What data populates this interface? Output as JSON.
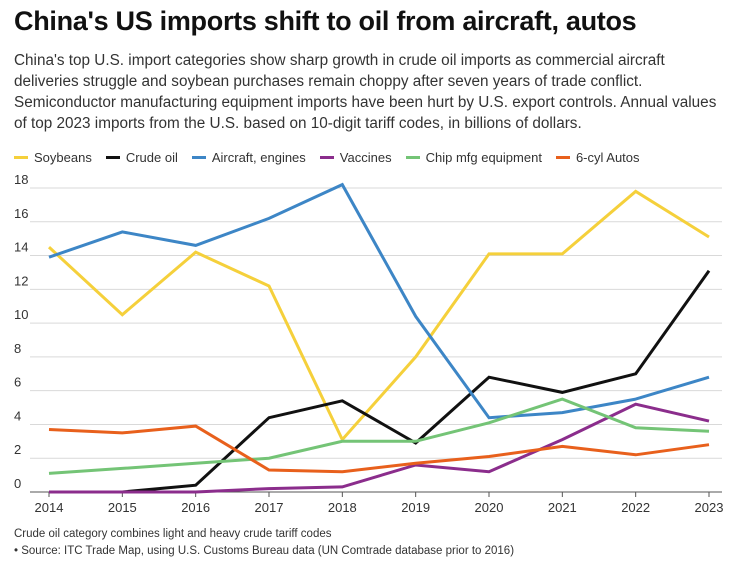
{
  "header": {
    "title": "China's US imports shift to oil from aircraft, autos",
    "subtitle": "China's top U.S. import categories show sharp growth in crude oil imports as commercial aircraft deliveries struggle and soybean purchases remain choppy after seven years of trade conflict. Semiconductor manufacturing equipment imports have been hurt by U.S. export controls. Annual values of top 2023 imports from the U.S. based on 10-digit tariff codes, in billions of dollars."
  },
  "footer": {
    "note": "Crude oil category combines light and heavy crude tariff codes",
    "source": "• Source: ITC Trade Map, using U.S. Customs Bureau data (UN Comtrade database prior to 2016)"
  },
  "chart_data": {
    "type": "line",
    "x": [
      "2014",
      "2015",
      "2016",
      "2017",
      "2018",
      "2019",
      "2020",
      "2021",
      "2022",
      "2023"
    ],
    "ylim": [
      0,
      18
    ],
    "yticks": [
      "0",
      "2",
      "4",
      "6",
      "8",
      "10",
      "12",
      "14",
      "16",
      "18"
    ],
    "grid": true,
    "legend_position": "top",
    "series": [
      {
        "name": "Soybeans",
        "color": "#f5d03b",
        "values": [
          14.5,
          10.5,
          14.2,
          12.2,
          3.1,
          8.0,
          14.1,
          14.1,
          17.8,
          15.1
        ]
      },
      {
        "name": "Crude oil",
        "color": "#111111",
        "values": [
          0.0,
          0.0,
          0.4,
          4.4,
          5.4,
          2.9,
          6.8,
          5.9,
          7.0,
          13.1
        ]
      },
      {
        "name": "Aircraft, engines",
        "color": "#3d86c6",
        "values": [
          13.9,
          15.4,
          14.6,
          16.2,
          18.2,
          10.4,
          4.4,
          4.7,
          5.5,
          6.8
        ]
      },
      {
        "name": "Vaccines",
        "color": "#8b2d8c",
        "values": [
          0.0,
          0.0,
          0.0,
          0.2,
          0.3,
          1.6,
          1.2,
          3.1,
          5.2,
          4.2
        ]
      },
      {
        "name": "Chip mfg equipment",
        "color": "#74c476",
        "values": [
          1.1,
          1.4,
          1.7,
          2.0,
          3.0,
          3.0,
          4.1,
          5.5,
          3.8,
          3.6
        ]
      },
      {
        "name": "6-cyl Autos",
        "color": "#e8601c",
        "values": [
          3.7,
          3.5,
          3.9,
          1.3,
          1.2,
          1.7,
          2.1,
          2.7,
          2.2,
          2.8
        ]
      }
    ]
  }
}
